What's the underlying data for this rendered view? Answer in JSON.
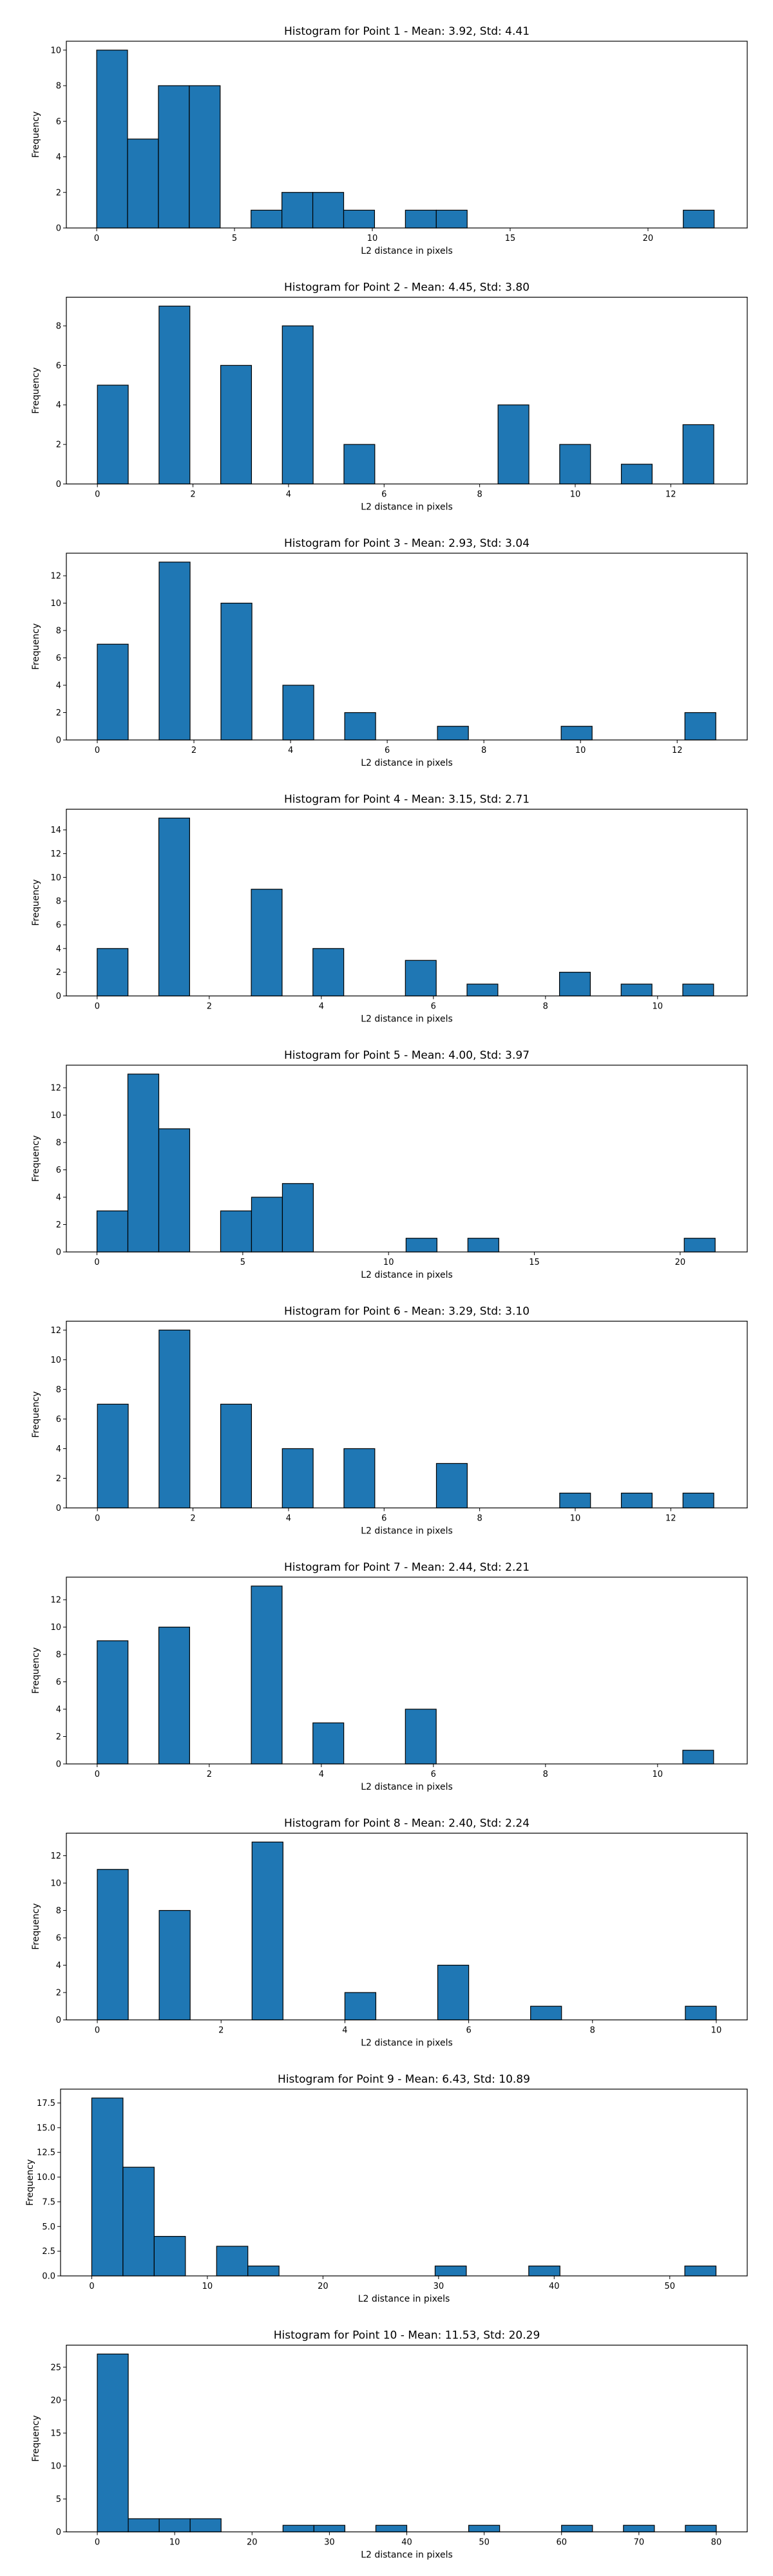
{
  "chart_data": [
    {
      "type": "bar",
      "title": "Histogram for Point 1 - Mean: 3.92, Std: 4.41",
      "xlabel": "L2 distance in pixels",
      "ylabel": "Frequency",
      "xlim": [
        -1.1,
        23.6
      ],
      "ylim": [
        0,
        10.5
      ],
      "xticks": [
        0,
        5,
        10,
        15,
        20
      ],
      "yticks": [
        0,
        2,
        4,
        6,
        8,
        10
      ],
      "ytick_labels": [
        "0",
        "2",
        "4",
        "6",
        "8",
        "10"
      ],
      "bins": [
        {
          "x0": 0.0,
          "x1": 1.12,
          "count": 10
        },
        {
          "x0": 1.12,
          "x1": 2.24,
          "count": 5
        },
        {
          "x0": 2.24,
          "x1": 3.36,
          "count": 8
        },
        {
          "x0": 3.36,
          "x1": 4.48,
          "count": 8
        },
        {
          "x0": 4.48,
          "x1": 5.6,
          "count": 0
        },
        {
          "x0": 5.6,
          "x1": 6.72,
          "count": 1
        },
        {
          "x0": 6.72,
          "x1": 7.84,
          "count": 2
        },
        {
          "x0": 7.84,
          "x1": 8.96,
          "count": 2
        },
        {
          "x0": 8.96,
          "x1": 10.08,
          "count": 1
        },
        {
          "x0": 10.08,
          "x1": 11.2,
          "count": 0
        },
        {
          "x0": 11.2,
          "x1": 12.32,
          "count": 1
        },
        {
          "x0": 12.32,
          "x1": 13.44,
          "count": 1
        },
        {
          "x0": 13.44,
          "x1": 14.56,
          "count": 0
        },
        {
          "x0": 14.56,
          "x1": 15.68,
          "count": 0
        },
        {
          "x0": 15.68,
          "x1": 16.8,
          "count": 0
        },
        {
          "x0": 16.8,
          "x1": 17.92,
          "count": 0
        },
        {
          "x0": 17.92,
          "x1": 19.04,
          "count": 0
        },
        {
          "x0": 19.04,
          "x1": 20.16,
          "count": 0
        },
        {
          "x0": 20.16,
          "x1": 21.28,
          "count": 0
        },
        {
          "x0": 21.28,
          "x1": 22.4,
          "count": 1
        }
      ]
    },
    {
      "type": "bar",
      "title": "Histogram for Point 2 - Mean: 4.45, Std: 3.80",
      "xlabel": "L2 distance in pixels",
      "ylabel": "Frequency",
      "xlim": [
        -0.65,
        13.6
      ],
      "ylim": [
        0,
        9.45
      ],
      "xticks": [
        0,
        2,
        4,
        6,
        8,
        10,
        12
      ],
      "yticks": [
        0,
        2,
        4,
        6,
        8
      ],
      "ytick_labels": [
        "0",
        "2",
        "4",
        "6",
        "8"
      ],
      "bins": [
        {
          "x0": 0.0,
          "x1": 0.645,
          "count": 5
        },
        {
          "x0": 1.29,
          "x1": 1.935,
          "count": 9
        },
        {
          "x0": 2.58,
          "x1": 3.225,
          "count": 6
        },
        {
          "x0": 3.87,
          "x1": 4.515,
          "count": 8
        },
        {
          "x0": 5.16,
          "x1": 5.805,
          "count": 2
        },
        {
          "x0": 8.385,
          "x1": 9.03,
          "count": 4
        },
        {
          "x0": 9.675,
          "x1": 10.32,
          "count": 2
        },
        {
          "x0": 10.965,
          "x1": 11.61,
          "count": 1
        },
        {
          "x0": 12.255,
          "x1": 12.9,
          "count": 3
        }
      ]
    },
    {
      "type": "bar",
      "title": "Histogram for Point 3 - Mean: 2.93, Std: 3.04",
      "xlabel": "L2 distance in pixels",
      "ylabel": "Frequency",
      "xlim": [
        -0.64,
        13.45
      ],
      "ylim": [
        0,
        13.65
      ],
      "xticks": [
        0,
        2,
        4,
        6,
        8,
        10,
        12
      ],
      "yticks": [
        0,
        2,
        4,
        6,
        8,
        10,
        12
      ],
      "ytick_labels": [
        "0",
        "2",
        "4",
        "6",
        "8",
        "10",
        "12"
      ],
      "bins": [
        {
          "x0": 0.0,
          "x1": 0.64,
          "count": 7
        },
        {
          "x0": 1.28,
          "x1": 1.92,
          "count": 13
        },
        {
          "x0": 2.56,
          "x1": 3.2,
          "count": 10
        },
        {
          "x0": 3.84,
          "x1": 4.48,
          "count": 4
        },
        {
          "x0": 5.12,
          "x1": 5.76,
          "count": 2
        },
        {
          "x0": 7.04,
          "x1": 7.68,
          "count": 1
        },
        {
          "x0": 9.6,
          "x1": 10.24,
          "count": 1
        },
        {
          "x0": 12.16,
          "x1": 12.8,
          "count": 2
        }
      ]
    },
    {
      "type": "bar",
      "title": "Histogram for Point 4 - Mean: 3.15, Std: 2.71",
      "xlabel": "L2 distance in pixels",
      "ylabel": "Frequency",
      "xlim": [
        -0.55,
        11.6
      ],
      "ylim": [
        0,
        15.75
      ],
      "xticks": [
        0,
        2,
        4,
        6,
        8,
        10
      ],
      "yticks": [
        0,
        2,
        4,
        6,
        8,
        10,
        12,
        14
      ],
      "ytick_labels": [
        "0",
        "2",
        "4",
        "6",
        "8",
        "10",
        "12",
        "14"
      ],
      "bins": [
        {
          "x0": 0.0,
          "x1": 0.55,
          "count": 4
        },
        {
          "x0": 1.1,
          "x1": 1.65,
          "count": 15
        },
        {
          "x0": 2.75,
          "x1": 3.3,
          "count": 9
        },
        {
          "x0": 3.85,
          "x1": 4.4,
          "count": 4
        },
        {
          "x0": 5.5,
          "x1": 6.05,
          "count": 3
        },
        {
          "x0": 6.6,
          "x1": 7.15,
          "count": 1
        },
        {
          "x0": 8.25,
          "x1": 8.8,
          "count": 2
        },
        {
          "x0": 9.35,
          "x1": 9.9,
          "count": 1
        },
        {
          "x0": 10.45,
          "x1": 11.0,
          "count": 1
        }
      ]
    },
    {
      "type": "bar",
      "title": "Histogram for Point 5 - Mean: 4.00, Std: 3.97",
      "xlabel": "L2 distance in pixels",
      "ylabel": "Frequency",
      "xlim": [
        -1.05,
        22.3
      ],
      "ylim": [
        0,
        13.65
      ],
      "xticks": [
        0,
        5,
        10,
        15,
        20
      ],
      "yticks": [
        0,
        2,
        4,
        6,
        8,
        10,
        12
      ],
      "ytick_labels": [
        "0",
        "2",
        "4",
        "6",
        "8",
        "10",
        "12"
      ],
      "bins": [
        {
          "x0": 0.0,
          "x1": 1.06,
          "count": 3
        },
        {
          "x0": 1.06,
          "x1": 2.12,
          "count": 13
        },
        {
          "x0": 2.12,
          "x1": 3.18,
          "count": 9
        },
        {
          "x0": 4.24,
          "x1": 5.3,
          "count": 3
        },
        {
          "x0": 5.3,
          "x1": 6.36,
          "count": 4
        },
        {
          "x0": 6.36,
          "x1": 7.42,
          "count": 5
        },
        {
          "x0": 10.6,
          "x1": 11.66,
          "count": 1
        },
        {
          "x0": 12.72,
          "x1": 13.78,
          "count": 1
        },
        {
          "x0": 20.14,
          "x1": 21.2,
          "count": 1
        }
      ]
    },
    {
      "type": "bar",
      "title": "Histogram for Point 6 - Mean: 3.29, Std: 3.10",
      "xlabel": "L2 distance in pixels",
      "ylabel": "Frequency",
      "xlim": [
        -0.65,
        13.6
      ],
      "ylim": [
        0,
        12.6
      ],
      "xticks": [
        0,
        2,
        4,
        6,
        8,
        10,
        12
      ],
      "yticks": [
        0,
        2,
        4,
        6,
        8,
        10,
        12
      ],
      "ytick_labels": [
        "0",
        "2",
        "4",
        "6",
        "8",
        "10",
        "12"
      ],
      "bins": [
        {
          "x0": 0.0,
          "x1": 0.645,
          "count": 7
        },
        {
          "x0": 1.29,
          "x1": 1.935,
          "count": 12
        },
        {
          "x0": 2.58,
          "x1": 3.225,
          "count": 7
        },
        {
          "x0": 3.87,
          "x1": 4.515,
          "count": 4
        },
        {
          "x0": 5.16,
          "x1": 5.805,
          "count": 4
        },
        {
          "x0": 7.095,
          "x1": 7.74,
          "count": 3
        },
        {
          "x0": 9.675,
          "x1": 10.32,
          "count": 1
        },
        {
          "x0": 10.965,
          "x1": 11.61,
          "count": 1
        },
        {
          "x0": 12.255,
          "x1": 12.9,
          "count": 1
        }
      ]
    },
    {
      "type": "bar",
      "title": "Histogram for Point 7 - Mean: 2.44, Std: 2.21",
      "xlabel": "L2 distance in pixels",
      "ylabel": "Frequency",
      "xlim": [
        -0.55,
        11.6
      ],
      "ylim": [
        0,
        13.65
      ],
      "xticks": [
        0,
        2,
        4,
        6,
        8,
        10
      ],
      "yticks": [
        0,
        2,
        4,
        6,
        8,
        10,
        12
      ],
      "ytick_labels": [
        "0",
        "2",
        "4",
        "6",
        "8",
        "10",
        "12"
      ],
      "bins": [
        {
          "x0": 0.0,
          "x1": 0.55,
          "count": 9
        },
        {
          "x0": 1.1,
          "x1": 1.65,
          "count": 10
        },
        {
          "x0": 2.75,
          "x1": 3.3,
          "count": 13
        },
        {
          "x0": 3.85,
          "x1": 4.4,
          "count": 3
        },
        {
          "x0": 5.5,
          "x1": 6.05,
          "count": 4
        },
        {
          "x0": 10.45,
          "x1": 11.0,
          "count": 1
        }
      ]
    },
    {
      "type": "bar",
      "title": "Histogram for Point 8 - Mean: 2.40, Std: 2.24",
      "xlabel": "L2 distance in pixels",
      "ylabel": "Frequency",
      "xlim": [
        -0.5,
        10.5
      ],
      "ylim": [
        0,
        13.65
      ],
      "xticks": [
        0,
        2,
        4,
        6,
        8,
        10
      ],
      "yticks": [
        0,
        2,
        4,
        6,
        8,
        10,
        12
      ],
      "ytick_labels": [
        "0",
        "2",
        "4",
        "6",
        "8",
        "10",
        "12"
      ],
      "bins": [
        {
          "x0": 0.0,
          "x1": 0.5,
          "count": 11
        },
        {
          "x0": 1.0,
          "x1": 1.5,
          "count": 8
        },
        {
          "x0": 2.5,
          "x1": 3.0,
          "count": 13
        },
        {
          "x0": 4.0,
          "x1": 4.5,
          "count": 2
        },
        {
          "x0": 5.5,
          "x1": 6.0,
          "count": 4
        },
        {
          "x0": 7.0,
          "x1": 7.5,
          "count": 1
        },
        {
          "x0": 9.5,
          "x1": 10.0,
          "count": 1
        }
      ]
    },
    {
      "type": "bar",
      "title": "Histogram for Point 9 - Mean: 6.43, Std: 10.89",
      "xlabel": "L2 distance in pixels",
      "ylabel": "Frequency",
      "xlim": [
        -2.7,
        56.7
      ],
      "ylim": [
        0,
        18.9
      ],
      "xticks": [
        0,
        10,
        20,
        30,
        40,
        50
      ],
      "yticks": [
        0,
        2.5,
        5,
        7.5,
        10,
        12.5,
        15,
        17.5
      ],
      "ytick_labels": [
        "0.0",
        "2.5",
        "5.0",
        "7.5",
        "10.0",
        "12.5",
        "15.0",
        "17.5"
      ],
      "bins": [
        {
          "x0": 0.0,
          "x1": 2.7,
          "count": 18
        },
        {
          "x0": 2.7,
          "x1": 5.4,
          "count": 11
        },
        {
          "x0": 5.4,
          "x1": 8.1,
          "count": 4
        },
        {
          "x0": 10.8,
          "x1": 13.5,
          "count": 3
        },
        {
          "x0": 13.5,
          "x1": 16.2,
          "count": 1
        },
        {
          "x0": 29.7,
          "x1": 32.4,
          "count": 1
        },
        {
          "x0": 37.8,
          "x1": 40.5,
          "count": 1
        },
        {
          "x0": 51.3,
          "x1": 54.0,
          "count": 1
        }
      ]
    },
    {
      "type": "bar",
      "title": "Histogram for Point 10 - Mean: 11.53, Std: 20.29",
      "xlabel": "L2 distance in pixels",
      "ylabel": "Frequency",
      "xlim": [
        -4.0,
        84.0
      ],
      "ylim": [
        0,
        28.35
      ],
      "xticks": [
        0,
        10,
        20,
        30,
        40,
        50,
        60,
        70,
        80
      ],
      "yticks": [
        0,
        5,
        10,
        15,
        20,
        25
      ],
      "ytick_labels": [
        "0",
        "5",
        "10",
        "15",
        "20",
        "25"
      ],
      "bins": [
        {
          "x0": 0.0,
          "x1": 4.0,
          "count": 27
        },
        {
          "x0": 4.0,
          "x1": 8.0,
          "count": 2
        },
        {
          "x0": 8.0,
          "x1": 12.0,
          "count": 2
        },
        {
          "x0": 12.0,
          "x1": 16.0,
          "count": 2
        },
        {
          "x0": 24.0,
          "x1": 28.0,
          "count": 1
        },
        {
          "x0": 28.0,
          "x1": 32.0,
          "count": 1
        },
        {
          "x0": 36.0,
          "x1": 40.0,
          "count": 1
        },
        {
          "x0": 48.0,
          "x1": 52.0,
          "count": 1
        },
        {
          "x0": 60.0,
          "x1": 64.0,
          "count": 1
        },
        {
          "x0": 68.0,
          "x1": 72.0,
          "count": 1
        },
        {
          "x0": 76.0,
          "x1": 80.0,
          "count": 1
        }
      ]
    }
  ]
}
